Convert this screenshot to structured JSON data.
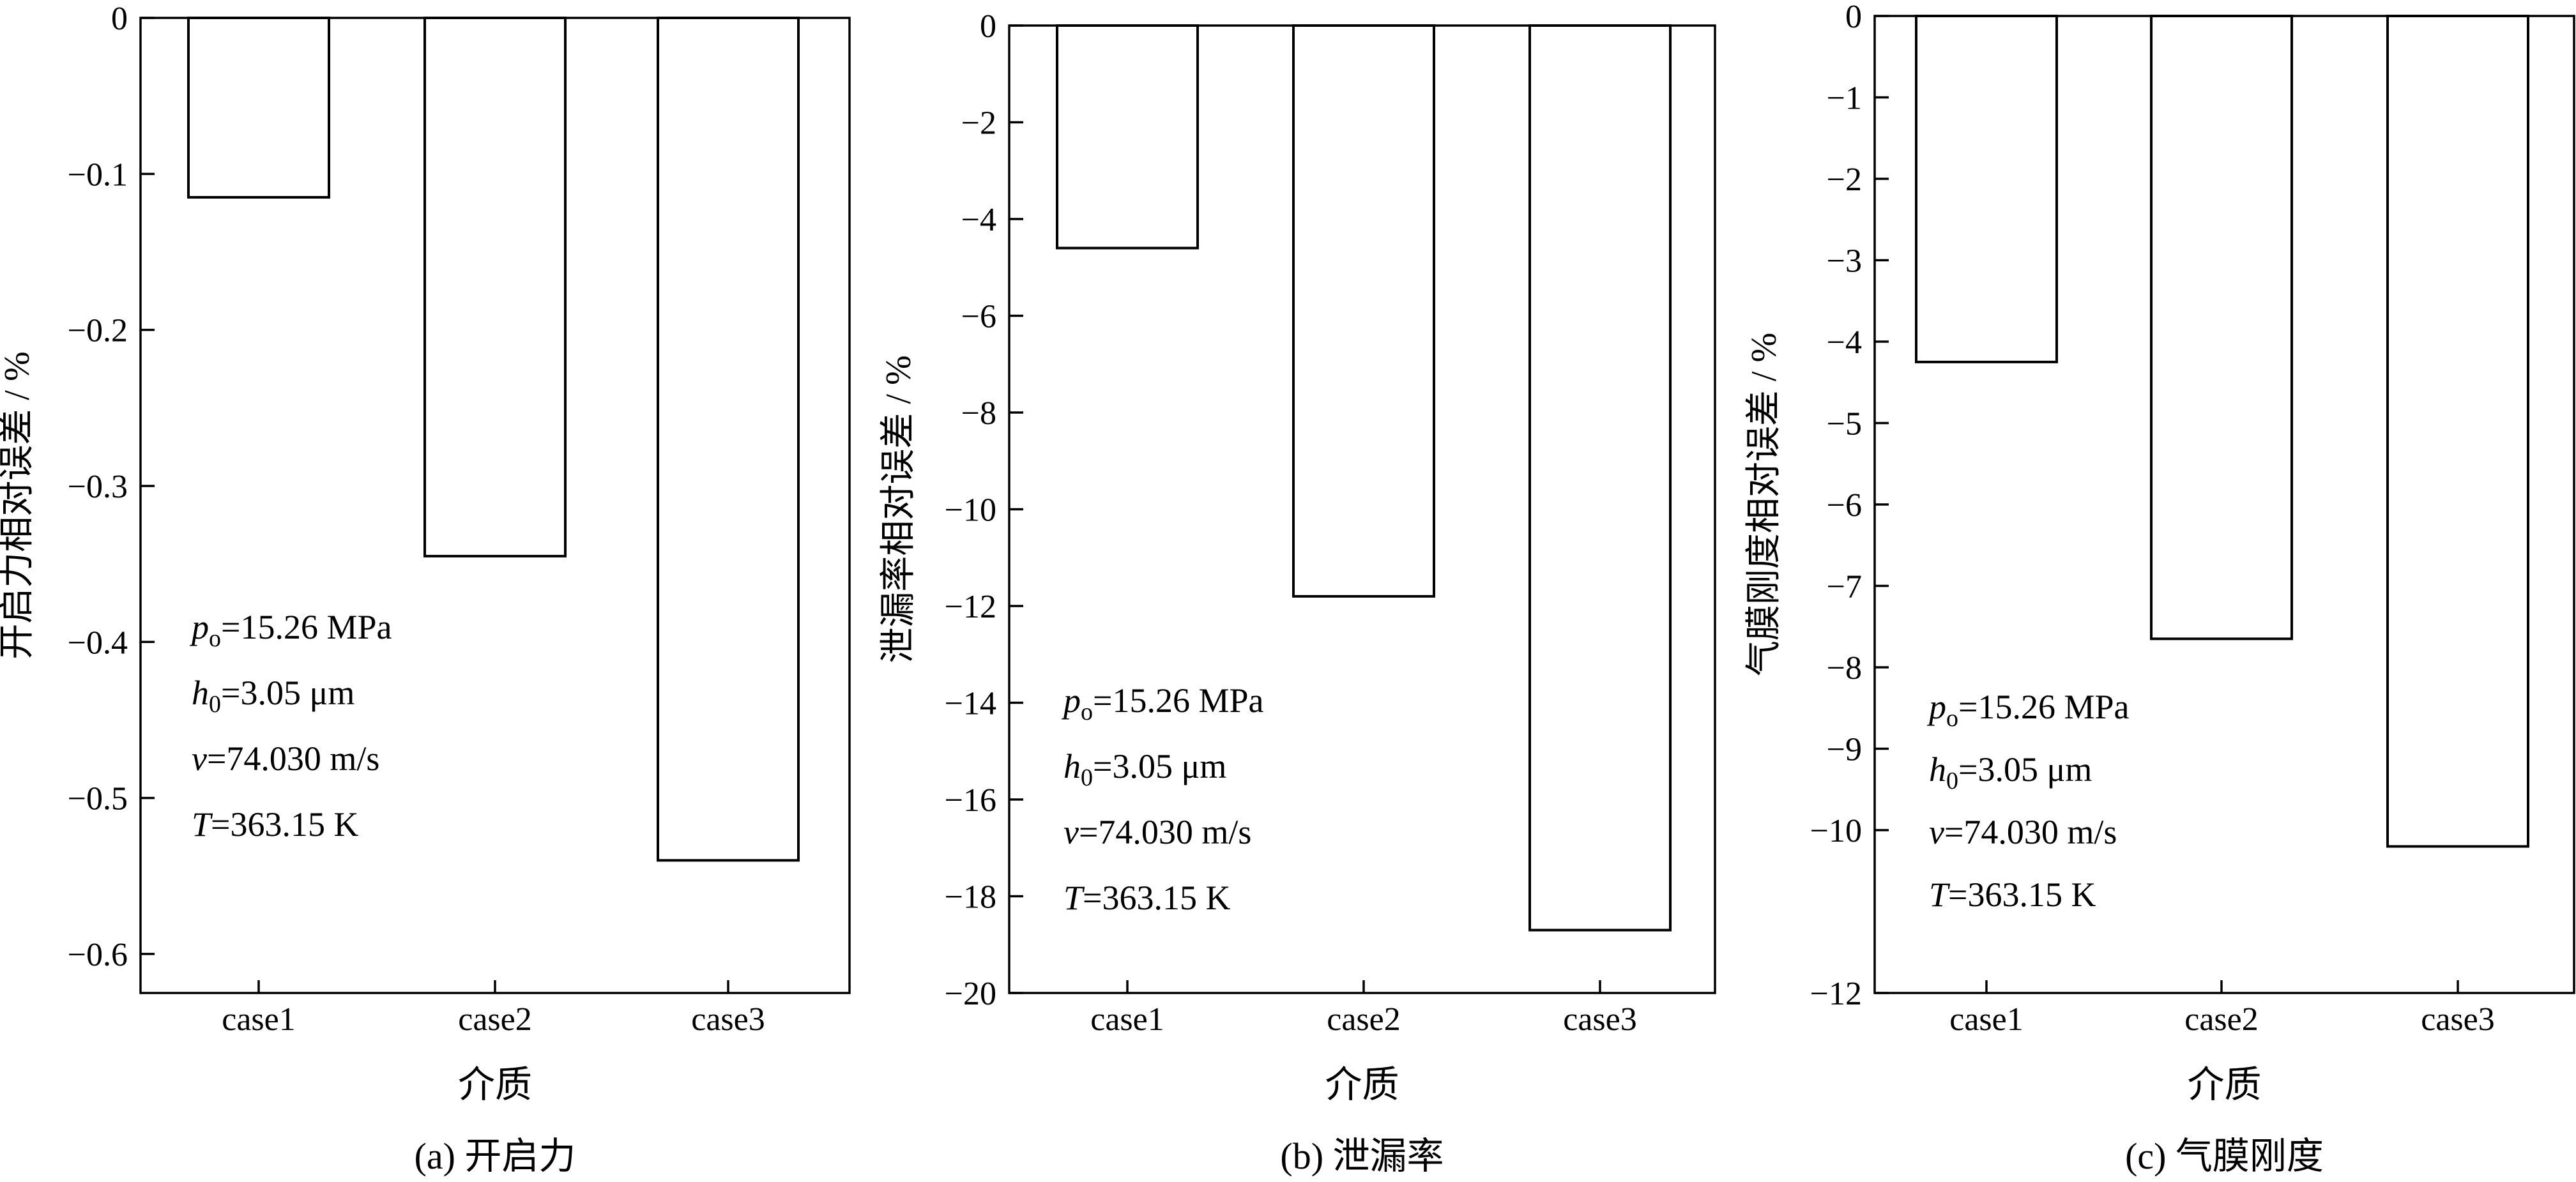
{
  "chart_data": [
    {
      "type": "bar",
      "caption": "(a) 开启力",
      "xlabel": "介质",
      "ylabel": "开启力相对误差 / %",
      "categories": [
        "case1",
        "case2",
        "case3"
      ],
      "values": [
        -0.115,
        -0.345,
        -0.54
      ],
      "ylim": [
        -0.625,
        0
      ],
      "yticks": [
        0,
        -0.1,
        -0.2,
        -0.3,
        -0.4,
        -0.5,
        -0.6
      ],
      "ytick_labels": [
        "0",
        "−0.1",
        "−0.2",
        "−0.3",
        "−0.4",
        "−0.5",
        "−0.6"
      ],
      "grid": false,
      "annotation": [
        {
          "sym": "p",
          "sub": "o",
          "rest": "=15.26 MPa"
        },
        {
          "sym": "h",
          "sub": "0",
          "rest": "=3.05 μm"
        },
        {
          "sym": "v",
          "sub": "",
          "rest": "=74.030 m/s"
        },
        {
          "sym": "T",
          "sub": "",
          "rest": "=363.15 K"
        }
      ]
    },
    {
      "type": "bar",
      "caption": "(b) 泄漏率",
      "xlabel": "介质",
      "ylabel": "泄漏率相对误差 / %",
      "categories": [
        "case1",
        "case2",
        "case3"
      ],
      "values": [
        -4.6,
        -11.8,
        -18.7
      ],
      "ylim": [
        -20,
        0
      ],
      "yticks": [
        0,
        -2,
        -4,
        -6,
        -8,
        -10,
        -12,
        -14,
        -16,
        -18,
        -20
      ],
      "ytick_labels": [
        "0",
        "−2",
        "−4",
        "−6",
        "−8",
        "−10",
        "−12",
        "−14",
        "−16",
        "−18",
        "−20"
      ],
      "grid": false,
      "annotation": [
        {
          "sym": "p",
          "sub": "o",
          "rest": "=15.26 MPa"
        },
        {
          "sym": "h",
          "sub": "0",
          "rest": "=3.05 μm"
        },
        {
          "sym": "v",
          "sub": "",
          "rest": "=74.030 m/s"
        },
        {
          "sym": "T",
          "sub": "",
          "rest": "=363.15 K"
        }
      ]
    },
    {
      "type": "bar",
      "caption": "(c) 气膜刚度",
      "xlabel": "介质",
      "ylabel": "气膜刚度相对误差 / %",
      "categories": [
        "case1",
        "case2",
        "case3"
      ],
      "values": [
        -4.25,
        -7.65,
        -10.2
      ],
      "ylim": [
        -12,
        0
      ],
      "yticks": [
        0,
        -1,
        -2,
        -3,
        -4,
        -5,
        -6,
        -7,
        -8,
        -9,
        -10,
        -12
      ],
      "ytick_labels": [
        "0",
        "−1",
        "−2",
        "−3",
        "−4",
        "−5",
        "−6",
        "−7",
        "−8",
        "−9",
        "−10",
        "−12"
      ],
      "grid": false,
      "annotation": [
        {
          "sym": "p",
          "sub": "o",
          "rest": "=15.26 MPa"
        },
        {
          "sym": "h",
          "sub": "0",
          "rest": "=3.05 μm"
        },
        {
          "sym": "v",
          "sub": "",
          "rest": "=74.030 m/s"
        },
        {
          "sym": "T",
          "sub": "",
          "rest": "=363.15 K"
        }
      ]
    }
  ]
}
